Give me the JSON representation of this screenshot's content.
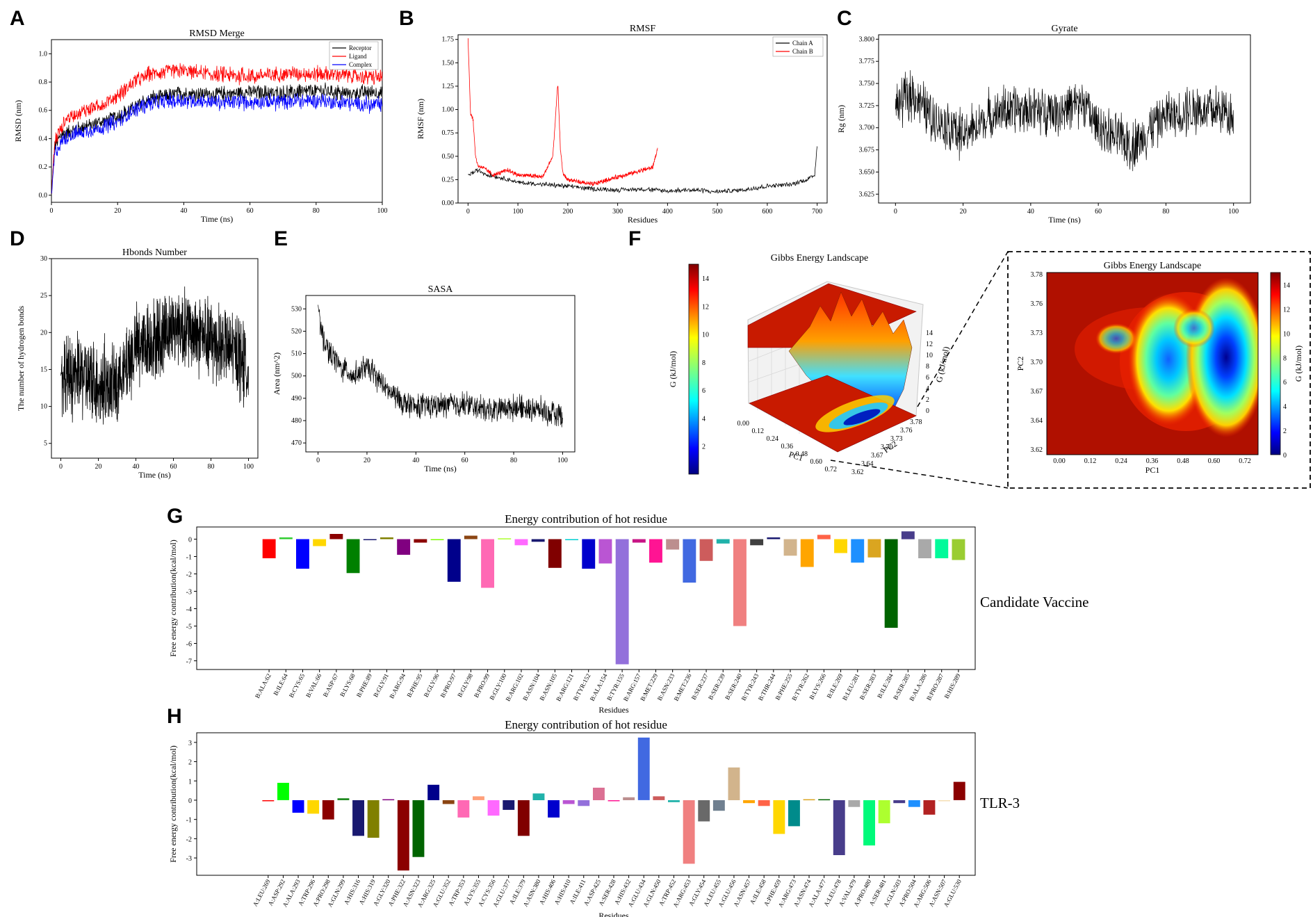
{
  "panels": {
    "A": {
      "label": "A",
      "chart_data": {
        "type": "line",
        "title": "RMSD Merge",
        "xlabel": "Time (ns)",
        "ylabel": "RMSD (nm)",
        "xlim": [
          0,
          100
        ],
        "ylim": [
          -0.05,
          1.1
        ],
        "xticks": [
          "0",
          "20",
          "40",
          "60",
          "80",
          "100"
        ],
        "yticks": [
          "0.0",
          "0.2",
          "0.4",
          "0.6",
          "0.8",
          "1.0"
        ],
        "series": [
          {
            "name": "Receptor",
            "color": "#000000",
            "x": [
              0,
              1,
              3,
              5,
              10,
              15,
              20,
              25,
              30,
              40,
              50,
              60,
              70,
              80,
              90,
              100
            ],
            "values": [
              0.0,
              0.35,
              0.42,
              0.45,
              0.48,
              0.52,
              0.55,
              0.62,
              0.68,
              0.72,
              0.71,
              0.73,
              0.72,
              0.74,
              0.72,
              0.73
            ]
          },
          {
            "name": "Ligand",
            "color": "#ff0000",
            "x": [
              0,
              1,
              3,
              5,
              10,
              15,
              20,
              25,
              30,
              40,
              50,
              60,
              70,
              80,
              90,
              100
            ],
            "values": [
              0.0,
              0.38,
              0.48,
              0.55,
              0.6,
              0.64,
              0.7,
              0.8,
              0.86,
              0.88,
              0.85,
              0.84,
              0.86,
              0.86,
              0.85,
              0.83
            ]
          },
          {
            "name": "Complex",
            "color": "#0000ff",
            "x": [
              0,
              1,
              3,
              5,
              10,
              15,
              20,
              25,
              30,
              40,
              50,
              60,
              70,
              80,
              90,
              100
            ],
            "values": [
              0.0,
              0.3,
              0.38,
              0.42,
              0.45,
              0.48,
              0.52,
              0.6,
              0.65,
              0.67,
              0.66,
              0.66,
              0.66,
              0.67,
              0.65,
              0.64
            ]
          }
        ]
      }
    },
    "B": {
      "label": "B",
      "chart_data": {
        "type": "line",
        "title": "RMSF",
        "xlabel": "Residues",
        "ylabel": "RMSF (nm)",
        "xlim": [
          -20,
          720
        ],
        "ylim": [
          0,
          1.8
        ],
        "xticks": [
          "0",
          "100",
          "200",
          "300",
          "400",
          "500",
          "600",
          "700"
        ],
        "yticks": [
          "0.00",
          "0.25",
          "0.50",
          "0.75",
          "1.00",
          "1.25",
          "1.50",
          "1.75"
        ],
        "series": [
          {
            "name": "Chain A",
            "color": "#000000",
            "x": [
              0,
              20,
              40,
              60,
              100,
              150,
              200,
              250,
              300,
              350,
              400,
              450,
              500,
              550,
              600,
              650,
              680,
              695,
              700
            ],
            "values": [
              0.3,
              0.35,
              0.3,
              0.28,
              0.22,
              0.2,
              0.18,
              0.15,
              0.14,
              0.15,
              0.13,
              0.14,
              0.12,
              0.14,
              0.18,
              0.2,
              0.25,
              0.3,
              0.62
            ]
          },
          {
            "name": "Chain B",
            "color": "#ff0000",
            "x": [
              0,
              5,
              10,
              15,
              20,
              30,
              50,
              80,
              100,
              150,
              170,
              180,
              185,
              190,
              200,
              250,
              300,
              350,
              370,
              380
            ],
            "values": [
              1.77,
              0.95,
              0.9,
              0.5,
              0.4,
              0.38,
              0.3,
              0.35,
              0.3,
              0.28,
              0.5,
              1.28,
              0.6,
              0.32,
              0.25,
              0.2,
              0.28,
              0.35,
              0.38,
              0.58
            ]
          }
        ]
      }
    },
    "C": {
      "label": "C",
      "chart_data": {
        "type": "line",
        "title": "Gyrate",
        "xlabel": "Time (ns)",
        "ylabel": "Rg (nm)",
        "xlim": [
          -5,
          105
        ],
        "ylim": [
          3.615,
          3.805
        ],
        "xticks": [
          "0",
          "20",
          "40",
          "60",
          "80",
          "100"
        ],
        "yticks": [
          "3.625",
          "3.650",
          "3.675",
          "3.700",
          "3.725",
          "3.750",
          "3.775",
          "3.800"
        ],
        "series": [
          {
            "name": "Rg",
            "color": "#000000",
            "x": [
              0,
              5,
              10,
              20,
              30,
              40,
              50,
              55,
              60,
              70,
              80,
              90,
              100
            ],
            "values": [
              3.725,
              3.74,
              3.715,
              3.69,
              3.72,
              3.72,
              3.72,
              3.73,
              3.7,
              3.68,
              3.715,
              3.72,
              3.715
            ]
          }
        ]
      }
    },
    "D": {
      "label": "D",
      "chart_data": {
        "type": "line",
        "title": "Hbonds Number",
        "xlabel": "Time (ns)",
        "ylabel": "The number of hydrogen bonds",
        "xlim": [
          -5,
          105
        ],
        "ylim": [
          3,
          30
        ],
        "xticks": [
          "0",
          "20",
          "40",
          "60",
          "80",
          "100"
        ],
        "yticks": [
          "5",
          "10",
          "15",
          "20",
          "25",
          "30"
        ],
        "series": [
          {
            "name": "Hbonds",
            "color": "#000000",
            "x": [
              0,
              10,
              20,
              30,
              40,
              50,
              60,
              70,
              80,
              90,
              100
            ],
            "values": [
              14,
              14,
              13,
              13,
              18,
              19,
              21,
              20,
              19,
              18,
              15
            ]
          }
        ]
      }
    },
    "E": {
      "label": "E",
      "chart_data": {
        "type": "line",
        "title": "SASA",
        "xlabel": "Time (ns)",
        "ylabel": "Area (nm^2)",
        "xlim": [
          -5,
          105
        ],
        "ylim": [
          466,
          536
        ],
        "xticks": [
          "0",
          "20",
          "40",
          "60",
          "80",
          "100"
        ],
        "yticks": [
          "470",
          "480",
          "490",
          "500",
          "510",
          "520",
          "530"
        ],
        "series": [
          {
            "name": "SASA",
            "color": "#000000",
            "x": [
              0,
              1,
              3,
              5,
              10,
              15,
              20,
              25,
              30,
              35,
              40,
              50,
              60,
              70,
              80,
              90,
              100
            ],
            "values": [
              532,
              520,
              515,
              510,
              503,
              500,
              504,
              498,
              492,
              488,
              486,
              487,
              487,
              485,
              486,
              485,
              482
            ]
          }
        ]
      }
    },
    "F": {
      "label": "F",
      "surface": {
        "title": "Gibbs Energy Landscape",
        "colorbar_label": "G (kJ/mol)",
        "colorbar_ticks": [
          "2",
          "4",
          "6",
          "8",
          "10",
          "12",
          "14"
        ],
        "zaxis_label": "G (kJ/mol)",
        "zticks": [
          "0",
          "2",
          "4",
          "6",
          "8",
          "10",
          "12",
          "14"
        ],
        "pc1_label": "PC1",
        "pc2_label": "PC2",
        "pc1_ticks": [
          "0.00",
          "0.12",
          "0.24",
          "0.36",
          "0.48",
          "0.60",
          "0.72"
        ],
        "pc2_ticks": [
          "3.62",
          "3.64",
          "3.67",
          "3.70",
          "3.73",
          "3.76",
          "3.78"
        ]
      },
      "heatmap": {
        "title": "Gibbs Energy Landscape",
        "xlabel": "PC1",
        "ylabel": "PC2",
        "colorbar_label": "G (kJ/mol)",
        "xticks": [
          "0.00",
          "0.12",
          "0.24",
          "0.36",
          "0.48",
          "0.60",
          "0.72"
        ],
        "yticks": [
          "3.62",
          "3.64",
          "3.67",
          "3.70",
          "3.73",
          "3.76",
          "3.78"
        ],
        "colorbar_ticks": [
          "0",
          "2",
          "4",
          "6",
          "8",
          "10",
          "12",
          "14"
        ],
        "min_energy_basins": [
          {
            "pc1": 0.63,
            "pc2": 3.71,
            "g": 0
          },
          {
            "pc1": 0.45,
            "pc2": 3.71,
            "g": 2
          }
        ]
      }
    },
    "G": {
      "label": "G",
      "side_label": "Candidate Vaccine",
      "chart_data": {
        "type": "bar",
        "title": "Energy contribution of hot residue",
        "xlabel": "Residues",
        "ylabel": "Free energy contribution(kcal/mol)",
        "ylim": [
          -7.5,
          0.7
        ],
        "yticks": [
          "-7",
          "-6",
          "-5",
          "-4",
          "-3",
          "-2",
          "-1",
          "0"
        ],
        "categories": [
          "B:ALA:62",
          "B:ILE:64",
          "B:CYS:65",
          "B:VAL:66",
          "B:ASP:67",
          "B:LYS:68",
          "B:PHE:89",
          "B:GLY:91",
          "B:ARG:94",
          "B:PHE:95",
          "B:GLY:96",
          "B:PRO:97",
          "B:GLY:98",
          "B:PRO:99",
          "B:GLY:100",
          "B:ARG:102",
          "B:ASN:104",
          "B:ASN:105",
          "B:ARG:121",
          "B:TYR:152",
          "B:ALA:154",
          "B:TYR:155",
          "B:ARG:157",
          "B:MET:229",
          "B:ASN:233",
          "B:MET:236",
          "B:SER:237",
          "B:SER:239",
          "B:SER:240",
          "B:TYR:243",
          "B:THR:244",
          "B:PHE:255",
          "B:TYR:262",
          "B:LYS:266",
          "B:ILE:269",
          "B:LEU:281",
          "B:SER:283",
          "B:ILE:284",
          "B:SER:285",
          "B:ALA:286",
          "B:PRO:287",
          "B:HIS:289"
        ],
        "values": [
          -1.1,
          0.1,
          -1.7,
          -0.4,
          0.3,
          -1.95,
          -0.05,
          0.1,
          -0.9,
          -0.2,
          0.0,
          -2.45,
          0.2,
          -2.8,
          0.05,
          -0.35,
          -0.15,
          -1.65,
          0.0,
          -1.7,
          -1.4,
          -7.2,
          -0.2,
          -1.35,
          -0.6,
          -2.5,
          -1.25,
          -0.25,
          -5.0,
          -0.35,
          0.1,
          -0.95,
          -1.6,
          0.25,
          -0.8,
          -1.35,
          -1.05,
          -5.1,
          0.45,
          -1.1,
          -1.1,
          -1.2
        ],
        "colors": [
          "#ff0000",
          "#32cd32",
          "#0000ff",
          "#ffd700",
          "#8b0000",
          "#008000",
          "#191970",
          "#808000",
          "#800080",
          "#8b0000",
          "#7cfc00",
          "#00008b",
          "#8b4513",
          "#ff69b4",
          "#adff2f",
          "#ff69ff",
          "#191970",
          "#800000",
          "#00ced1",
          "#0000cd",
          "#ba55d3",
          "#9370db",
          "#c71585",
          "#ff1493",
          "#bc8f8f",
          "#4169e1",
          "#cd5c5c",
          "#20b2aa",
          "#f08080",
          "#404040",
          "#191970",
          "#d2b48c",
          "#ffa500",
          "#ff6347",
          "#ffd700",
          "#1e90ff",
          "#daa520",
          "#006400",
          "#483d8b",
          "#a9a9a9",
          "#00fa9a",
          "#9acd32"
        ]
      }
    },
    "H": {
      "label": "H",
      "side_label": "TLR-3",
      "chart_data": {
        "type": "bar",
        "title": "Energy contribution of hot residue",
        "xlabel": "Residues",
        "ylabel": "Free energy contribution(kcal/mol)",
        "ylim": [
          -3.9,
          3.5
        ],
        "yticks": [
          "-3",
          "-2",
          "-1",
          "0",
          "1",
          "2",
          "3"
        ],
        "categories": [
          "A:LEU:269",
          "A:ASP:292",
          "A:ALA:293",
          "A:TRP:296",
          "A:PRO:298",
          "A:GLN:299",
          "A:HIS:316",
          "A:HIS:319",
          "A:GLY:320",
          "A:PHE:322",
          "A:ASN:323",
          "A:ARG:325",
          "A:GLU:352",
          "A:TRP:353",
          "A:LYS:355",
          "A:CYS:356",
          "A:GLU:377",
          "A:ILE:379",
          "A:ASN:380",
          "A:HIS:406",
          "A:HIS:410",
          "A:ILE:411",
          "A:ASP:425",
          "A:SER:428",
          "A:HIS:432",
          "A:GLU:434",
          "A:GLN:450",
          "A:TRP:452",
          "A:ARG:453",
          "A:GLY:454",
          "A:LEU:455",
          "A:GLU:456",
          "A:ASN:457",
          "A:ILE:458",
          "A:PHE:459",
          "A:ARG:473",
          "A:ASN:474",
          "A:ALA:477",
          "A:LEU:478",
          "A:VAL:479",
          "A:PRO:480",
          "A:SER:481",
          "A:GLN:503",
          "A:PRO:504",
          "A:ARG:506",
          "A:ASN:507",
          "A:GLU:530"
        ],
        "values": [
          -0.05,
          0.9,
          -0.65,
          -0.7,
          -1.0,
          0.1,
          -1.85,
          -1.95,
          0.05,
          -3.65,
          -2.95,
          0.8,
          -0.2,
          -0.9,
          0.2,
          -0.8,
          -0.5,
          -1.85,
          0.35,
          -0.9,
          -0.2,
          -0.3,
          0.65,
          -0.05,
          0.15,
          3.25,
          0.2,
          -0.1,
          -3.3,
          -1.1,
          -0.55,
          1.7,
          -0.15,
          -0.3,
          -1.75,
          -1.35,
          0.05,
          0.05,
          -2.85,
          -0.35,
          -2.35,
          -1.2,
          -0.15,
          -0.35,
          -0.75,
          0.0,
          0.95
        ],
        "colors": [
          "#ff0000",
          "#00ff00",
          "#0000ff",
          "#ffd700",
          "#8b0000",
          "#228b22",
          "#191970",
          "#808000",
          "#800080",
          "#8b0000",
          "#006400",
          "#00008b",
          "#8b4513",
          "#ff69b4",
          "#ffa07a",
          "#ff69ff",
          "#191970",
          "#800000",
          "#20b2aa",
          "#0000cd",
          "#ba55d3",
          "#9370db",
          "#db7093",
          "#ff1493",
          "#bc8f8f",
          "#4169e1",
          "#cd5c5c",
          "#20b2aa",
          "#f08080",
          "#696969",
          "#708090",
          "#d2b48c",
          "#ffa500",
          "#ff6347",
          "#ffd700",
          "#008b8b",
          "#daa520",
          "#006400",
          "#483d8b",
          "#a9a9a9",
          "#00fa7a",
          "#adff2f",
          "#483d8b",
          "#1e90ff",
          "#b22222",
          "#f5deb3",
          "#8b0000"
        ]
      }
    }
  }
}
